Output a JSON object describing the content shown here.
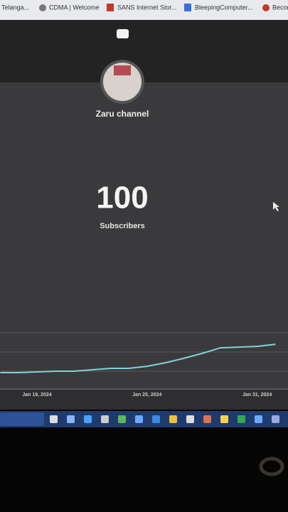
{
  "bookmarks": [
    "Telanga...",
    "CDMA | Welcome",
    "SANS Internet Stor...",
    "BleepingComputer...",
    "Becon"
  ],
  "channel": {
    "name": "Zaru channel",
    "count": "100",
    "count_label": "Subscribers"
  },
  "chart_data": {
    "type": "line",
    "categories": [
      null,
      null,
      "Jan 19, 2024",
      null,
      null,
      null,
      null,
      null,
      "Jan 25, 2024",
      null,
      null,
      null,
      null,
      null,
      "Jan 31, 2024",
      null
    ],
    "series": [
      {
        "color": "#7fd3dc",
        "values": [
          87,
          87,
          87.3,
          87.6,
          87.6,
          88.2,
          88.8,
          88.8,
          89.7,
          91.2,
          93.1,
          95.2,
          97.6,
          97.9,
          98.2,
          99.1
        ]
      }
    ],
    "ylim": [
      80,
      104
    ]
  }
}
